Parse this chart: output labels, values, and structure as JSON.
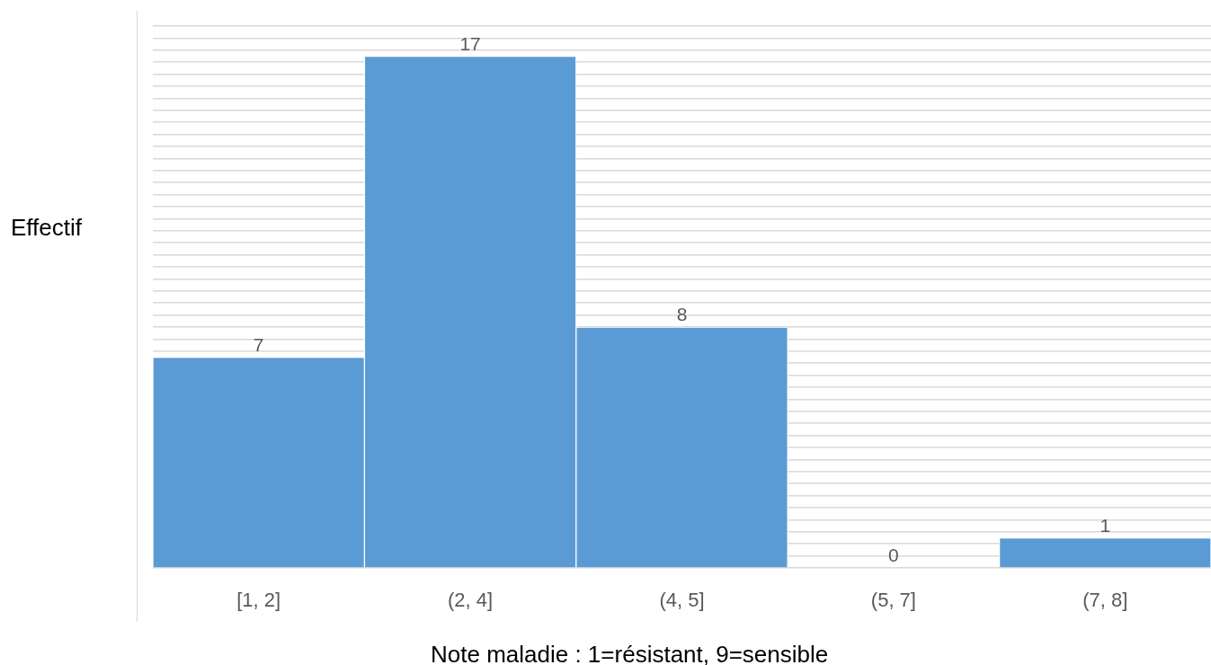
{
  "chart_data": {
    "type": "bar",
    "categories": [
      "[1, 2]",
      "(2, 4]",
      "(4, 5]",
      "(5, 7]",
      "(7, 8]"
    ],
    "values": [
      7,
      17,
      8,
      0,
      1
    ],
    "color": "#5b9bd5",
    "ylabel": "Effectif",
    "xlabel": "Note maladie : 1=résistant, 9=sensible",
    "ylim": [
      0,
      18
    ],
    "yticks": [
      {
        "value": 0,
        "label": null
      },
      {
        "value": 0.4,
        "label": null
      },
      {
        "value": 0.8,
        "label": null
      },
      {
        "value": 1.2,
        "label": null
      },
      {
        "value": 1.6,
        "label": null
      },
      {
        "value": 2,
        "label": null
      },
      {
        "value": 2.4,
        "label": null
      },
      {
        "value": 2.8,
        "label": null
      },
      {
        "value": 3.2,
        "label": null
      },
      {
        "value": 3.6,
        "label": null
      },
      {
        "value": 4,
        "label": null
      },
      {
        "value": 4.4,
        "label": null
      },
      {
        "value": 4.8,
        "label": null
      },
      {
        "value": 5.2,
        "label": null
      },
      {
        "value": 5.6,
        "label": null
      },
      {
        "value": 6,
        "label": null
      },
      {
        "value": 6.4,
        "label": null
      },
      {
        "value": 6.8,
        "label": null
      },
      {
        "value": 7.2,
        "label": null
      },
      {
        "value": 7.6,
        "label": null
      },
      {
        "value": 8,
        "label": null
      },
      {
        "value": 8.4,
        "label": null
      },
      {
        "value": 8.8,
        "label": null
      },
      {
        "value": 9.2,
        "label": null
      },
      {
        "value": 9.6,
        "label": null
      },
      {
        "value": 10,
        "label": null
      },
      {
        "value": 10.4,
        "label": null
      },
      {
        "value": 10.8,
        "label": null
      },
      {
        "value": 11.2,
        "label": null
      },
      {
        "value": 11.6,
        "label": null
      },
      {
        "value": 12,
        "label": null
      },
      {
        "value": 12.4,
        "label": null
      },
      {
        "value": 12.8,
        "label": null
      },
      {
        "value": 13.2,
        "label": null
      },
      {
        "value": 13.6,
        "label": null
      },
      {
        "value": 14,
        "label": null
      },
      {
        "value": 14.4,
        "label": null
      },
      {
        "value": 14.8,
        "label": null
      },
      {
        "value": 15.2,
        "label": null
      },
      {
        "value": 15.6,
        "label": null
      },
      {
        "value": 16,
        "label": null
      },
      {
        "value": 16.4,
        "label": null
      },
      {
        "value": 16.8,
        "label": null
      },
      {
        "value": 17.2,
        "label": null
      },
      {
        "value": 17.6,
        "label": null
      },
      {
        "value": 18,
        "label": null
      }
    ],
    "grid": "y",
    "tick_labels": "x",
    "data_labels": true
  }
}
